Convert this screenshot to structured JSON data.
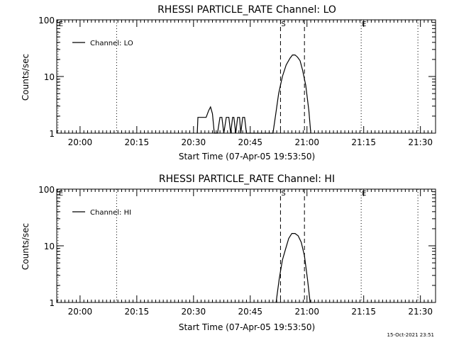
{
  "footer": {
    "timestamp": "15-Oct-2021 23:51"
  },
  "chart_data": [
    {
      "type": "line",
      "title": "RHESSI PARTICLE_RATE Channel: LO",
      "xlabel": "Start Time (07-Apr-05 19:53:50)",
      "ylabel": "Counts/sec",
      "yscale": "log",
      "xlim": [
        "19:53:50",
        "21:34:00"
      ],
      "ylim": [
        1,
        100
      ],
      "xticks": [
        "20:00",
        "20:15",
        "20:30",
        "20:45",
        "21:00",
        "21:15",
        "21:30"
      ],
      "yticks": [
        "1",
        "10",
        "100"
      ],
      "legend": {
        "position": "top-left"
      },
      "markers": [
        {
          "label": "E",
          "time": "19:54:10",
          "style": "dotted"
        },
        {
          "time": "20:09:40",
          "style": "dotted"
        },
        {
          "label": "S",
          "time": "20:53:00",
          "style": "dashed"
        },
        {
          "time": "20:59:20",
          "style": "dashed"
        },
        {
          "label": "E",
          "time": "21:14:20",
          "style": "dotted"
        },
        {
          "time": "21:29:20",
          "style": "dotted"
        }
      ],
      "series": [
        {
          "name": "Channel: LO",
          "x": [
            "20:31:00",
            "20:31:10",
            "20:33:20",
            "20:34:00",
            "20:34:30",
            "20:35:00",
            "20:35:30",
            "20:36:20",
            "20:37:00",
            "20:37:30",
            "20:38:00",
            "20:38:40",
            "20:39:20",
            "20:39:50",
            "20:40:20",
            "20:40:40",
            "20:41:10",
            "20:41:40",
            "20:42:10",
            "20:42:30",
            "20:43:00",
            "20:43:30",
            "20:44:00",
            "20:44:40",
            "20:51:00",
            "20:51:40",
            "20:52:30",
            "20:53:30",
            "20:54:30",
            "20:55:30",
            "20:56:10",
            "20:56:50",
            "20:57:30",
            "20:58:10",
            "20:58:50",
            "20:59:40",
            "21:00:30",
            "21:01:00"
          ],
          "y": [
            1,
            1.9,
            1.9,
            2.5,
            2.9,
            2.2,
            1,
            1,
            1.9,
            1.9,
            1,
            1.9,
            1.9,
            1,
            1.9,
            1.9,
            1,
            1.9,
            1.9,
            1,
            1.9,
            1.9,
            1,
            1,
            1,
            2,
            5,
            10,
            16,
            21,
            24,
            24,
            22,
            19,
            13,
            7,
            2.5,
            1
          ]
        }
      ]
    },
    {
      "type": "line",
      "title": "RHESSI PARTICLE_RATE Channel: HI",
      "xlabel": "Start Time (07-Apr-05 19:53:50)",
      "ylabel": "Counts/sec",
      "yscale": "log",
      "xlim": [
        "19:53:50",
        "21:34:00"
      ],
      "ylim": [
        1,
        100
      ],
      "xticks": [
        "20:00",
        "20:15",
        "20:30",
        "20:45",
        "21:00",
        "21:15",
        "21:30"
      ],
      "yticks": [
        "1",
        "10",
        "100"
      ],
      "legend": {
        "position": "top-left"
      },
      "markers": [
        {
          "label": "E",
          "time": "19:54:10",
          "style": "dotted"
        },
        {
          "time": "20:09:40",
          "style": "dotted"
        },
        {
          "label": "S",
          "time": "20:53:00",
          "style": "dashed"
        },
        {
          "time": "20:59:20",
          "style": "dashed"
        },
        {
          "label": "E",
          "time": "21:14:20",
          "style": "dotted"
        },
        {
          "time": "21:29:20",
          "style": "dotted"
        }
      ],
      "series": [
        {
          "name": "Channel: HI",
          "x": [
            "20:51:50",
            "20:52:40",
            "20:53:30",
            "20:54:20",
            "20:55:10",
            "20:56:00",
            "20:56:50",
            "20:57:40",
            "20:58:30",
            "20:59:20",
            "21:00:10",
            "21:00:50"
          ],
          "y": [
            1,
            2.6,
            5.6,
            8.7,
            13.5,
            16.5,
            16.5,
            15,
            11.5,
            6.6,
            2.5,
            1
          ]
        }
      ]
    }
  ]
}
